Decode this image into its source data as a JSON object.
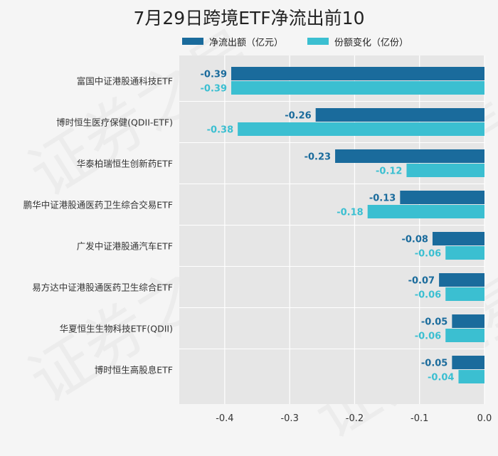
{
  "title": "7月29日跨境ETF净流出前10",
  "watermark": "证券之星",
  "legend": {
    "position": "top"
  },
  "colors": {
    "series1": "#1a6b9c",
    "series2": "#3bbfd1",
    "label1": "#1a6b9c",
    "label2": "#3bbfd1",
    "plot_bg": "#e6e6e6",
    "page_bg": "#f5f5f5"
  },
  "chart_data": {
    "type": "bar",
    "orientation": "horizontal",
    "categories": [
      "富国中证港股通科技ETF",
      "博时恒生医疗保健(QDII-ETF)",
      "华泰柏瑞恒生创新药ETF",
      "鹏华中证港股通医药卫生综合交易ETF",
      "广发中证港股通汽车ETF",
      "易方达中证港股通医药卫生综合ETF",
      "华夏恒生生物科技ETF(QDII)",
      "博时恒生高股息ETF"
    ],
    "series": [
      {
        "name": "净流出额（亿元）",
        "values": [
          -0.39,
          -0.26,
          -0.23,
          -0.13,
          -0.08,
          -0.07,
          -0.05,
          -0.05
        ],
        "labels": [
          "-0.39",
          "-0.26",
          "-0.23",
          "-0.13",
          "-0.08",
          "-0.07",
          "-0.05",
          "-0.05"
        ]
      },
      {
        "name": "份额变化（亿份）",
        "values": [
          -0.39,
          -0.38,
          -0.12,
          -0.18,
          -0.06,
          -0.06,
          -0.06,
          -0.04
        ],
        "labels": [
          "-0.39",
          "-0.38",
          "-0.12",
          "-0.18",
          "-0.06",
          "-0.06",
          "-0.06",
          "-0.04"
        ]
      }
    ],
    "xlim": [
      -0.47,
      0.0
    ],
    "xticks": [
      -0.4,
      -0.3,
      -0.2,
      -0.1,
      0.0
    ],
    "xtick_labels": [
      "-0.4",
      "-0.3",
      "-0.2",
      "-0.1",
      "0.0"
    ],
    "grid": true,
    "xlabel": "",
    "ylabel": ""
  }
}
